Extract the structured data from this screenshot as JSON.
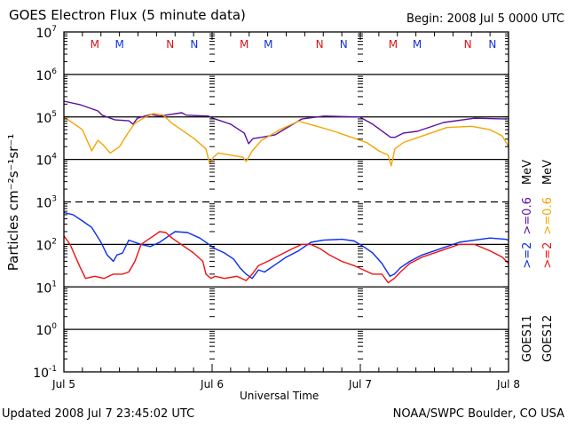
{
  "header": {
    "title": "GOES Electron Flux (5 minute data)",
    "begin": "Begin: 2008 Jul 5 0000 UTC"
  },
  "footer": {
    "updated": "Updated 2008 Jul  7 23:45:02 UTC",
    "credit": "NOAA/SWPC Boulder, CO USA"
  },
  "colors": {
    "goes11_06": "#5a0fa0",
    "goes12_06": "#f5a500",
    "goes11_2": "#0a2cf0",
    "goes12_2": "#f01010",
    "marker_red": "#e01010",
    "marker_blue": "#1030e0"
  },
  "chart_data": {
    "type": "line",
    "title": "GOES Electron Flux (5 minute data)",
    "xlabel": "Universal Time",
    "ylabel": "Particles cm⁻²s⁻¹sr⁻¹",
    "yscale": "log",
    "ylim": [
      0.1,
      10000000
    ],
    "xlim_hours": [
      0,
      72
    ],
    "x_unit": "hours since 2008 Jul 5 0000 UTC",
    "x_ticks": [
      {
        "hours": 0,
        "label": "Jul 5"
      },
      {
        "hours": 24,
        "label": "Jul 6"
      },
      {
        "hours": 48,
        "label": "Jul 7"
      },
      {
        "hours": 72,
        "label": "Jul 8"
      }
    ],
    "y_ticks": [
      {
        "exp": 7,
        "label": "10",
        "sup": "7"
      },
      {
        "exp": 6,
        "label": "10",
        "sup": "6"
      },
      {
        "exp": 5,
        "label": "10",
        "sup": "5"
      },
      {
        "exp": 4,
        "label": "10",
        "sup": "4"
      },
      {
        "exp": 3,
        "label": "10",
        "sup": "3"
      },
      {
        "exp": 2,
        "label": "10",
        "sup": "2"
      },
      {
        "exp": 1,
        "label": "10",
        "sup": "1"
      },
      {
        "exp": 0,
        "label": "10",
        "sup": "0"
      },
      {
        "exp": -1,
        "label": "10",
        "sup": "-1"
      }
    ],
    "solid_gridlines_exp": [
      6,
      5,
      4,
      2,
      1,
      0
    ],
    "dashed_gridlines_exp": [
      3
    ],
    "legend": {
      "placement": "right",
      "columns": [
        {
          "satellite": "GOES11",
          "entries": [
            {
              "label": ">=2",
              "color_key": "goes11_2"
            },
            {
              "label": ">=0.6",
              "color_key": "goes11_06"
            }
          ],
          "unit": "MeV"
        },
        {
          "satellite": "GOES12",
          "entries": [
            {
              "label": ">=2",
              "color_key": "goes12_2"
            },
            {
              "label": ">=0.6",
              "color_key": "goes12_06"
            }
          ],
          "unit": "MeV"
        }
      ]
    },
    "markers": [
      {
        "hours": 5.0,
        "label": "M",
        "color_key": "marker_red"
      },
      {
        "hours": 9.0,
        "label": "M",
        "color_key": "marker_blue"
      },
      {
        "hours": 17.2,
        "label": "N",
        "color_key": "marker_red"
      },
      {
        "hours": 21.1,
        "label": "N",
        "color_key": "marker_blue"
      },
      {
        "hours": 29.2,
        "label": "M",
        "color_key": "marker_red"
      },
      {
        "hours": 33.1,
        "label": "M",
        "color_key": "marker_blue"
      },
      {
        "hours": 41.4,
        "label": "N",
        "color_key": "marker_red"
      },
      {
        "hours": 45.3,
        "label": "N",
        "color_key": "marker_blue"
      },
      {
        "hours": 53.3,
        "label": "M",
        "color_key": "marker_red"
      },
      {
        "hours": 57.2,
        "label": "M",
        "color_key": "marker_blue"
      },
      {
        "hours": 65.4,
        "label": "N",
        "color_key": "marker_red"
      },
      {
        "hours": 69.4,
        "label": "N",
        "color_key": "marker_blue"
      }
    ],
    "series": [
      {
        "name": "GOES11 >=0.6 MeV",
        "color_key": "goes11_06",
        "x": [
          0,
          2.6,
          5.5,
          6.2,
          8.3,
          10.5,
          11.2,
          11.9,
          14.1,
          15.5,
          19.1,
          19.8,
          23.4,
          24.1,
          27.0,
          29.2,
          29.9,
          30.6,
          32.0,
          34.2,
          38.5,
          42.1,
          47.9,
          50.0,
          52.9,
          53.6,
          55.0,
          57.2,
          61.5,
          66.5,
          71.7
        ],
        "log10_values": [
          5.37,
          5.29,
          5.14,
          5.04,
          4.93,
          4.91,
          4.83,
          4.97,
          5.06,
          5.02,
          5.1,
          5.04,
          5.02,
          4.97,
          4.83,
          4.62,
          4.37,
          4.49,
          4.52,
          4.58,
          4.95,
          5.02,
          5.0,
          4.83,
          4.52,
          4.52,
          4.62,
          4.66,
          4.87,
          4.97,
          4.95
        ]
      },
      {
        "name": "GOES12 >=0.6 MeV",
        "color_key": "goes12_06",
        "x": [
          0,
          1.0,
          3.0,
          4.5,
          5.5,
          6.3,
          7.5,
          9.0,
          10.5,
          11.5,
          13.0,
          14.5,
          16.0,
          17.5,
          19.0,
          21.0,
          23.0,
          23.6,
          24.2,
          25.0,
          27.0,
          29.0,
          29.5,
          30.5,
          32.0,
          35.0,
          38.0,
          41.0,
          44.0,
          47.0,
          49.0,
          51.0,
          52.5,
          53.0,
          53.6,
          55.0,
          58.0,
          62.0,
          66.0,
          69.0,
          71.0,
          72.0
        ],
        "log10_values": [
          5.0,
          4.9,
          4.7,
          4.2,
          4.45,
          4.35,
          4.15,
          4.3,
          4.65,
          4.85,
          4.98,
          5.08,
          5.05,
          4.85,
          4.7,
          4.5,
          4.25,
          3.9,
          4.05,
          4.15,
          4.1,
          4.05,
          3.95,
          4.2,
          4.45,
          4.7,
          4.9,
          4.78,
          4.65,
          4.5,
          4.4,
          4.2,
          4.1,
          3.85,
          4.25,
          4.4,
          4.55,
          4.75,
          4.78,
          4.7,
          4.55,
          4.3
        ]
      },
      {
        "name": "GOES11 >=2 MeV",
        "color_key": "goes11_2",
        "x": [
          0,
          1.5,
          3.0,
          4.5,
          6.0,
          7.0,
          8.0,
          8.6,
          9.5,
          10.5,
          11.5,
          12.5,
          14.0,
          15.5,
          16.5,
          18.0,
          20.0,
          22.0,
          23.5,
          24.5,
          26.0,
          27.5,
          28.5,
          29.5,
          30.5,
          31.5,
          32.5,
          34.0,
          36.0,
          38.0,
          40.0,
          42.0,
          45.0,
          47.0,
          48.5,
          50.0,
          51.5,
          52.8,
          53.5,
          54.5,
          56.0,
          58.0,
          61.0,
          64.0,
          66.5,
          69.0,
          71.5,
          72.0
        ],
        "log10_values": [
          2.75,
          2.7,
          2.55,
          2.4,
          2.05,
          1.75,
          1.6,
          1.75,
          1.8,
          2.1,
          2.05,
          2.0,
          1.95,
          2.05,
          2.15,
          2.3,
          2.28,
          2.15,
          2.0,
          1.9,
          1.8,
          1.65,
          1.45,
          1.3,
          1.2,
          1.4,
          1.35,
          1.5,
          1.7,
          1.85,
          2.05,
          2.1,
          2.12,
          2.08,
          1.95,
          1.8,
          1.55,
          1.25,
          1.3,
          1.45,
          1.6,
          1.75,
          1.9,
          2.05,
          2.1,
          2.15,
          2.12,
          2.1
        ]
      },
      {
        "name": "GOES12 >=2 MeV",
        "color_key": "goes12_2",
        "x": [
          0,
          1.0,
          2.5,
          3.5,
          5.0,
          6.5,
          8.0,
          9.5,
          10.5,
          11.5,
          12.5,
          13.5,
          14.5,
          15.5,
          16.5,
          17.5,
          19.0,
          21.0,
          22.5,
          23.0,
          23.8,
          24.5,
          26.0,
          28.0,
          29.5,
          30.5,
          31.5,
          33.0,
          35.0,
          37.0,
          38.5,
          40.0,
          41.5,
          43.0,
          45.0,
          47.0,
          48.5,
          50.0,
          51.5,
          52.5,
          53.5,
          54.5,
          56.0,
          58.0,
          61.0,
          64.0,
          66.5,
          69.0,
          71.0,
          72.0
        ],
        "log10_values": [
          2.2,
          2.0,
          1.5,
          1.2,
          1.25,
          1.2,
          1.3,
          1.3,
          1.35,
          1.6,
          2.0,
          2.1,
          2.2,
          2.3,
          2.28,
          2.15,
          2.0,
          1.8,
          1.6,
          1.3,
          1.2,
          1.25,
          1.2,
          1.25,
          1.15,
          1.3,
          1.5,
          1.6,
          1.75,
          1.9,
          2.0,
          2.0,
          1.9,
          1.75,
          1.6,
          1.5,
          1.4,
          1.3,
          1.3,
          1.1,
          1.2,
          1.35,
          1.55,
          1.7,
          1.85,
          2.0,
          2.0,
          1.85,
          1.7,
          1.55
        ]
      }
    ]
  }
}
